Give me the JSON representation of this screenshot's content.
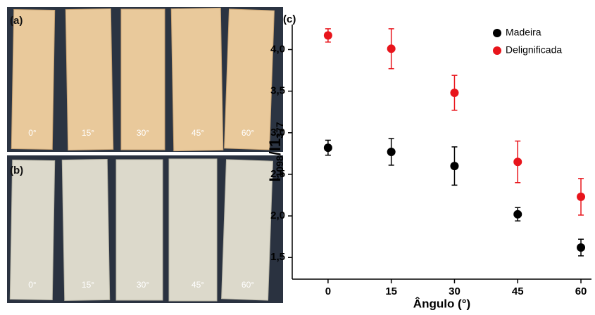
{
  "panels": {
    "a": {
      "label": "(a)",
      "angles": [
        "0°",
        "15°",
        "30°",
        "45°",
        "60°"
      ]
    },
    "b": {
      "label": "(b)",
      "angles": [
        "0°",
        "15°",
        "30°",
        "45°",
        "60°"
      ]
    }
  },
  "chart_data": {
    "type": "scatter",
    "panel_label": "(c)",
    "xlabel": "Ângulo (°)",
    "ylabel": {
      "main": "I",
      "sub1": "1098",
      "mid": "/I1",
      "sub2": "377"
    },
    "x": [
      0,
      15,
      30,
      45,
      60
    ],
    "series": [
      {
        "name": "Madeira",
        "color": "#000000",
        "values": [
          2.82,
          2.77,
          2.6,
          2.02,
          1.62
        ],
        "errors": [
          0.09,
          0.16,
          0.23,
          0.08,
          0.1
        ]
      },
      {
        "name": "Delignificada",
        "color": "#e8141b",
        "values": [
          4.17,
          4.01,
          3.48,
          2.65,
          2.23
        ],
        "errors": [
          0.08,
          0.24,
          0.21,
          0.25,
          0.22
        ]
      }
    ],
    "xlim": [
      -8.5,
      62.5
    ],
    "xticks": [
      0,
      15,
      30,
      45,
      60
    ],
    "ylim": [
      1.24,
      4.3
    ],
    "yticks": [
      {
        "value": 1.5,
        "label": "1,5"
      },
      {
        "value": 2,
        "label": "2,0"
      },
      {
        "value": 2.5,
        "label": "2,5"
      },
      {
        "value": 3,
        "label": "3,0"
      },
      {
        "value": 3.5,
        "label": "3,5"
      },
      {
        "value": 4,
        "label": "4,0"
      }
    ],
    "legend": "top-right"
  }
}
